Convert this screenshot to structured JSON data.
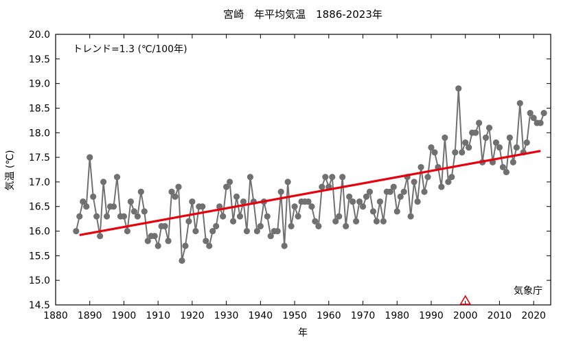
{
  "chart_data": {
    "type": "line",
    "title": "宮崎　年平均気温　1886-2023年",
    "xlabel": "年",
    "ylabel": "気温 (℃)",
    "xlim": [
      1880,
      2025
    ],
    "ylim": [
      14.5,
      20.0
    ],
    "xticks": [
      1880,
      1890,
      1900,
      1910,
      1920,
      1930,
      1940,
      1950,
      1960,
      1970,
      1980,
      1990,
      2000,
      2010,
      2020
    ],
    "yticks": [
      14.5,
      15.0,
      15.5,
      16.0,
      16.5,
      17.0,
      17.5,
      18.0,
      18.5,
      19.0,
      19.5,
      20.0
    ],
    "xtick_labels": [
      "1880",
      "1890",
      "1900",
      "1910",
      "1920",
      "1930",
      "1940",
      "1950",
      "1960",
      "1970",
      "1980",
      "1990",
      "2000",
      "2010",
      "2020"
    ],
    "ytick_labels": [
      "14.5",
      "15.0",
      "15.5",
      "16.0",
      "16.5",
      "17.0",
      "17.5",
      "18.0",
      "18.5",
      "19.0",
      "19.5",
      "20.0"
    ],
    "trend_label": "トレンド=1.3 (℃/100年)",
    "source_label": "気象庁",
    "colors": {
      "series": "#707070",
      "trend": "#e8000b",
      "marker": "#e8000b"
    },
    "series": [
      {
        "x": [
          1886,
          1887,
          1888,
          1889,
          1890,
          1891,
          1892,
          1893,
          1894,
          1895,
          1896,
          1897,
          1898,
          1899,
          1900,
          1901,
          1902,
          1903,
          1904,
          1905,
          1906,
          1907,
          1908,
          1909,
          1910,
          1911,
          1912,
          1913,
          1914,
          1915,
          1916,
          1917,
          1918,
          1919,
          1920,
          1921,
          1922,
          1923,
          1924,
          1925,
          1926,
          1927,
          1928,
          1929,
          1930,
          1931,
          1932,
          1933,
          1934,
          1935,
          1936,
          1937,
          1938,
          1939,
          1940,
          1941,
          1942,
          1943,
          1944,
          1945,
          1946,
          1947,
          1948,
          1949,
          1950,
          1951,
          1952,
          1953,
          1954,
          1955,
          1956,
          1957,
          1958,
          1959,
          1960,
          1961,
          1962,
          1963,
          1964,
          1965,
          1966,
          1967,
          1968,
          1969,
          1970,
          1971,
          1972,
          1973,
          1974,
          1975,
          1976,
          1977,
          1978,
          1979,
          1980,
          1981,
          1982,
          1983,
          1984,
          1985,
          1986,
          1987,
          1988,
          1989,
          1990,
          1991,
          1992,
          1993,
          1994,
          1995,
          1996,
          1997,
          1998,
          1999,
          2000,
          2001,
          2002,
          2003,
          2004,
          2005,
          2006,
          2007,
          2008,
          2009,
          2010,
          2011,
          2012,
          2013,
          2014,
          2015,
          2016,
          2017,
          2018,
          2019,
          2020,
          2021,
          2022,
          2023
        ],
        "values": [
          16.0,
          16.3,
          16.6,
          16.5,
          17.5,
          16.7,
          16.3,
          15.9,
          17.0,
          16.3,
          16.5,
          16.5,
          17.1,
          16.3,
          16.3,
          16.0,
          16.6,
          16.4,
          16.3,
          16.8,
          16.4,
          15.8,
          15.9,
          15.9,
          15.7,
          16.1,
          16.1,
          15.8,
          16.8,
          16.7,
          16.9,
          15.4,
          15.7,
          16.2,
          16.6,
          16.0,
          16.5,
          16.5,
          15.8,
          15.7,
          16.0,
          16.1,
          16.5,
          16.3,
          16.9,
          17.0,
          16.2,
          16.7,
          16.3,
          16.6,
          16.0,
          17.1,
          16.6,
          16.0,
          16.1,
          16.6,
          16.3,
          15.9,
          16.0,
          16.0,
          16.8,
          15.7,
          17.0,
          16.1,
          16.5,
          16.3,
          16.6,
          16.6,
          16.6,
          16.5,
          16.2,
          16.1,
          16.9,
          17.1,
          16.9,
          17.1,
          16.2,
          16.3,
          17.1,
          16.1,
          16.7,
          16.6,
          16.2,
          16.6,
          16.5,
          16.7,
          16.8,
          16.4,
          16.2,
          16.6,
          16.2,
          16.8,
          16.8,
          16.9,
          16.4,
          16.7,
          16.8,
          17.1,
          16.3,
          17.0,
          16.6,
          17.3,
          16.8,
          17.1,
          17.7,
          17.6,
          17.3,
          16.9,
          17.9,
          17.0,
          17.1,
          17.6,
          18.9,
          17.6,
          17.8,
          17.7,
          18.0,
          18.0,
          18.2,
          17.4,
          17.9,
          18.1,
          17.4,
          17.8,
          17.7,
          17.3,
          17.2,
          17.9,
          17.4,
          17.7,
          18.6,
          17.6,
          17.8,
          18.4,
          18.3,
          18.2,
          18.2,
          18.4
        ]
      }
    ],
    "trend": {
      "x": [
        1887,
        2022
      ],
      "values": [
        15.92,
        17.63
      ]
    },
    "marker": {
      "x": 2000
    }
  }
}
